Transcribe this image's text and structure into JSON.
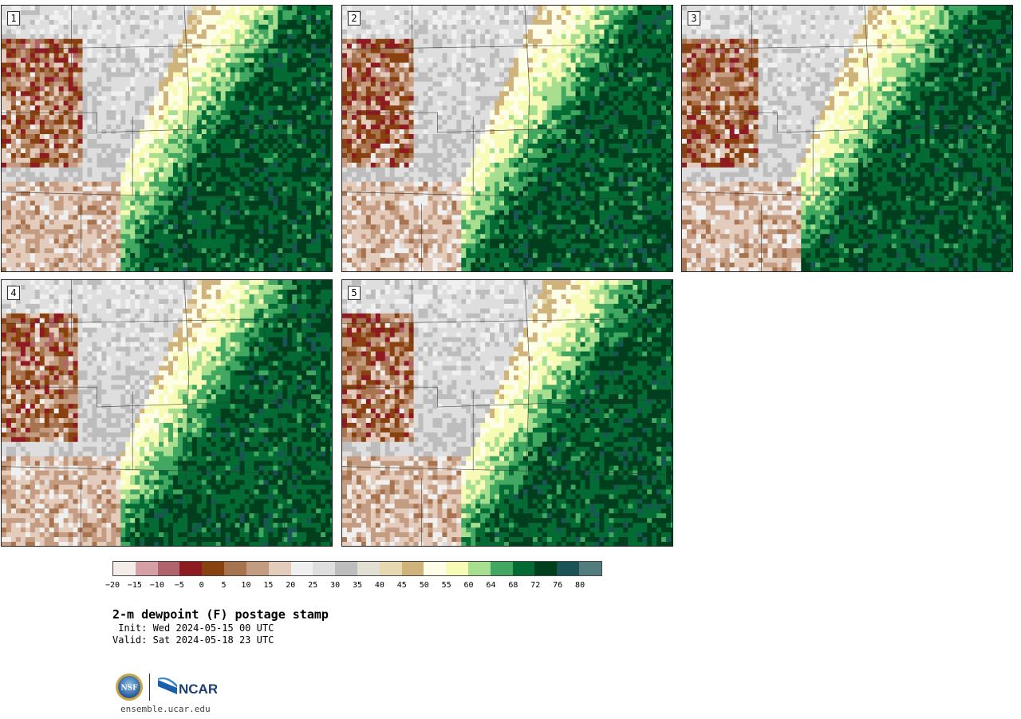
{
  "panels": [
    {
      "label": "1",
      "moist_center": 0.62,
      "dry_extent": 0.42
    },
    {
      "label": "2",
      "moist_center": 0.63,
      "dry_extent": 0.38
    },
    {
      "label": "3",
      "moist_center": 0.6,
      "dry_extent": 0.4
    },
    {
      "label": "4",
      "moist_center": 0.63,
      "dry_extent": 0.4
    },
    {
      "label": "5",
      "moist_center": 0.65,
      "dry_extent": 0.38
    }
  ],
  "colorbar": {
    "colors": [
      "#f4ece9",
      "#d4a0a5",
      "#b0636a",
      "#8e1a22",
      "#8a4110",
      "#a87450",
      "#c49c82",
      "#e4ccbc",
      "#f0f0f0",
      "#dedede",
      "#bdbdbd",
      "#e2e0d2",
      "#e6d8b0",
      "#cfb37a",
      "#fefee8",
      "#f8fbb6",
      "#a8de8f",
      "#42a861",
      "#046b34",
      "#003f1e",
      "#1b5457",
      "#527c7e"
    ],
    "tick_labels": [
      "−20",
      "−15",
      "−10",
      "−5",
      "0",
      "5",
      "10",
      "15",
      "20",
      "25",
      "30",
      "35",
      "40",
      "45",
      "50",
      "55",
      "60",
      "64",
      "68",
      "72",
      "76",
      "80"
    ]
  },
  "title": "2-m dewpoint (F) postage stamp",
  "init": " Init: Wed 2024-05-15 00 UTC",
  "valid": "Valid: Sat 2024-05-18 23 UTC",
  "logos": {
    "nsf": "NSF",
    "ncar": "NCAR"
  },
  "footer_url": "ensemble.ucar.edu"
}
